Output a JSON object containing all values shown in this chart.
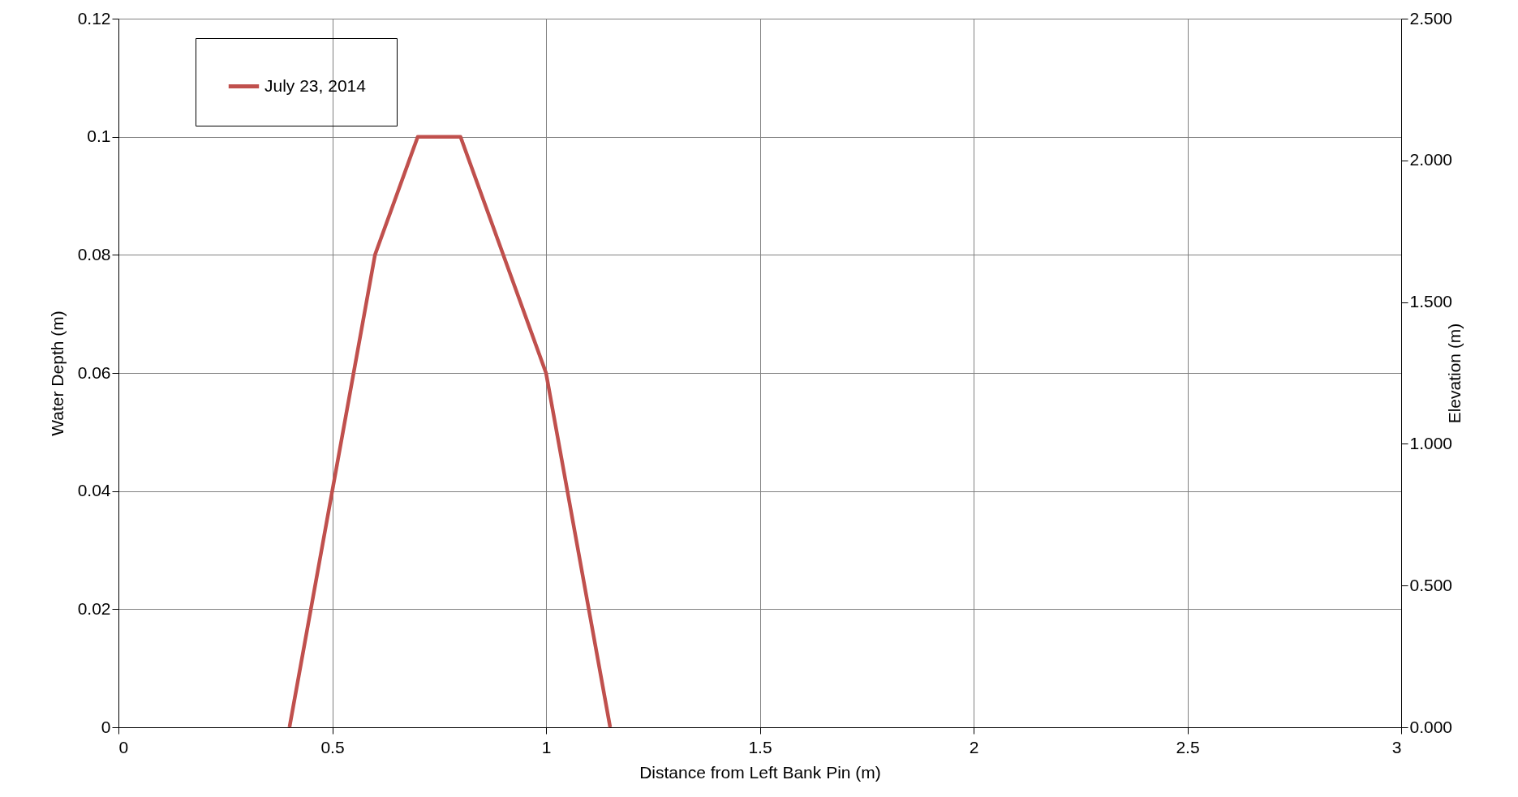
{
  "chart_data": {
    "type": "line",
    "xlabel": "Distance from Left Bank Pin (m)",
    "ylabel": "Water Depth (m)",
    "y2label": "Elevation (m)",
    "x": [
      0.4,
      0.6,
      0.7,
      0.8,
      1.0,
      1.15
    ],
    "series": [
      {
        "name": "July 23, 2014",
        "color": "#c0504d",
        "values": [
          0,
          0.08,
          0.1,
          0.1,
          0.06,
          0
        ]
      }
    ],
    "xlim": [
      0,
      3
    ],
    "xticks": [
      0,
      0.5,
      1,
      1.5,
      2,
      2.5,
      3
    ],
    "ylim": [
      0,
      0.12
    ],
    "yticks": [
      0,
      0.02,
      0.04,
      0.06,
      0.08,
      0.1,
      0.12
    ],
    "y2lim": [
      0,
      2.5
    ],
    "y2ticks": [
      {
        "value": 0,
        "label": "0.000"
      },
      {
        "value": 0.5,
        "label": "0.500"
      },
      {
        "value": 1,
        "label": "1.000"
      },
      {
        "value": 1.5,
        "label": "1.500"
      },
      {
        "value": 2,
        "label": "2.000"
      },
      {
        "value": 2.5,
        "label": "2.500"
      }
    ],
    "grid": true,
    "legend": "top left",
    "marker": "none",
    "line_style": "solid"
  }
}
